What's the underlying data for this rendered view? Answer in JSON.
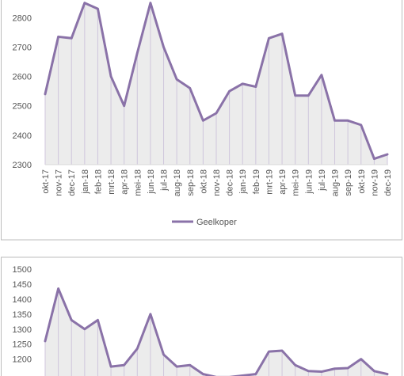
{
  "chart_data": [
    {
      "type": "area",
      "categories": [
        "okt-17",
        "nov-17",
        "dec-17",
        "jan-18",
        "feb-18",
        "mrt-18",
        "apr-18",
        "mei-18",
        "jun-18",
        "jul-18",
        "aug-18",
        "sep-18",
        "okt-18",
        "nov-18",
        "dec-18",
        "jan-19",
        "feb-19",
        "mrt-19",
        "apr-19",
        "mei-19",
        "jun-19",
        "jul-19",
        "aug-19",
        "sep-19",
        "okt-19",
        "nov-19",
        "dec-19"
      ],
      "series": [
        {
          "name": "Geelkoper",
          "values": [
            2540,
            2735,
            2730,
            2850,
            2830,
            2600,
            2500,
            2680,
            2850,
            2700,
            2590,
            2560,
            2450,
            2475,
            2550,
            2575,
            2565,
            2730,
            2745,
            2535,
            2535,
            2605,
            2450,
            2450,
            2435,
            2320,
            2335
          ]
        }
      ],
      "yticks": [
        2300,
        2400,
        2500,
        2600,
        2700,
        2800
      ],
      "ylim": [
        2300,
        2860
      ],
      "line_color": "#8a72a8",
      "fill_color": "#ececec",
      "drop_line_color": "#cfc6dc",
      "legend_position": "bottom"
    },
    {
      "type": "area",
      "x_index": [
        0,
        1,
        2,
        3,
        4,
        5,
        6,
        7,
        8,
        9,
        10,
        11,
        12,
        13,
        14,
        15,
        16,
        17,
        18,
        19,
        20,
        21,
        22,
        23,
        24,
        25,
        26
      ],
      "series": [
        {
          "values": [
            1260,
            1435,
            1330,
            1300,
            1330,
            1175,
            1180,
            1235,
            1350,
            1215,
            1175,
            1180,
            1150,
            1140,
            1140,
            1145,
            1150,
            1225,
            1228,
            1180,
            1160,
            1158,
            1168,
            1170,
            1200,
            1160,
            1150
          ]
        }
      ],
      "yticks": [
        1200,
        1250,
        1300,
        1350,
        1400,
        1450,
        1500
      ],
      "ylim": [
        1170,
        1500
      ],
      "line_color": "#8a72a8",
      "fill_color": "#ececec",
      "drop_line_color": "#cfc6dc"
    }
  ]
}
